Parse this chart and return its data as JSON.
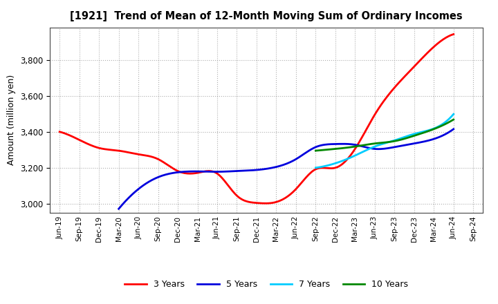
{
  "title": "[1921]  Trend of Mean of 12-Month Moving Sum of Ordinary Incomes",
  "ylabel": "Amount (million yen)",
  "background_color": "#ffffff",
  "plot_bg_color": "#ffffff",
  "grid_color": "#999999",
  "x_labels": [
    "Jun-19",
    "Sep-19",
    "Dec-19",
    "Mar-20",
    "Jun-20",
    "Sep-20",
    "Dec-20",
    "Mar-21",
    "Jun-21",
    "Sep-21",
    "Dec-21",
    "Mar-22",
    "Jun-22",
    "Sep-22",
    "Dec-22",
    "Mar-23",
    "Jun-23",
    "Sep-23",
    "Dec-23",
    "Mar-24",
    "Jun-24",
    "Sep-24"
  ],
  "ylim": [
    2950,
    3980
  ],
  "yticks": [
    3000,
    3200,
    3400,
    3600,
    3800
  ],
  "series": {
    "3 Years": {
      "color": "#ff0000",
      "linewidth": 2.0,
      "values": [
        3400,
        3355,
        3310,
        3295,
        3275,
        3248,
        3182,
        3172,
        3168,
        3045,
        3005,
        3010,
        3082,
        3192,
        3200,
        3305,
        3495,
        3645,
        3762,
        3872,
        3942,
        null
      ]
    },
    "5 Years": {
      "color": "#0000dd",
      "linewidth": 2.0,
      "values": [
        null,
        null,
        null,
        2972,
        3082,
        3148,
        3175,
        3180,
        3178,
        3182,
        3188,
        3205,
        3248,
        3315,
        3332,
        3328,
        3305,
        3315,
        3335,
        3360,
        3415,
        null
      ]
    },
    "7 Years": {
      "color": "#00ccff",
      "linewidth": 2.0,
      "values": [
        null,
        null,
        null,
        null,
        null,
        null,
        null,
        null,
        null,
        null,
        null,
        null,
        null,
        3200,
        3225,
        3268,
        3318,
        3352,
        3388,
        3418,
        3498,
        null
      ]
    },
    "10 Years": {
      "color": "#008800",
      "linewidth": 2.0,
      "values": [
        null,
        null,
        null,
        null,
        null,
        null,
        null,
        null,
        null,
        null,
        null,
        null,
        null,
        3295,
        3305,
        3318,
        3335,
        3348,
        3378,
        3415,
        3468,
        null
      ]
    }
  },
  "legend": {
    "labels": [
      "3 Years",
      "5 Years",
      "7 Years",
      "10 Years"
    ],
    "colors": [
      "#ff0000",
      "#0000dd",
      "#00ccff",
      "#008800"
    ],
    "ncol": 4
  }
}
